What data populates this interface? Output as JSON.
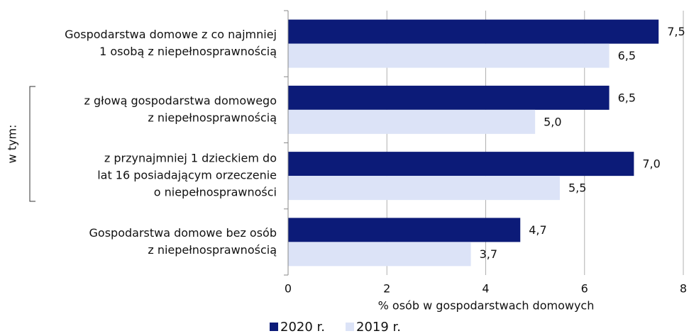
{
  "chart_data": {
    "type": "hbar",
    "categories": [
      [
        "Gospodarstwa domowe z co najmniej",
        "1 osobą z niepełnosprawnością"
      ],
      [
        "z głową gospodarstwa domowego",
        "z niepełnosprawnością"
      ],
      [
        "z przynajmniej 1 dzieckiem do",
        "lat 16 posiadającym orzeczenie",
        "o niepełnosprawności"
      ],
      [
        "Gospodarstwa domowe bez osób",
        "z niepełnosprawnością"
      ]
    ],
    "series": [
      {
        "name": "2020 r.",
        "color": "#0c1b78",
        "values": [
          7.5,
          6.5,
          7.0,
          4.7
        ],
        "value_labels": [
          "7,5",
          "6,5",
          "7,0",
          "4,7"
        ]
      },
      {
        "name": "2019 r.",
        "color": "#dce3f7",
        "values": [
          6.5,
          5.0,
          5.5,
          3.7
        ],
        "value_labels": [
          "6,5",
          "5,0",
          "5,5",
          "3,7"
        ]
      }
    ],
    "xlabel": "% osób w gospodarstwach domowych",
    "annotation": "w tym:",
    "xlim": [
      0,
      8
    ],
    "xticks": [
      0,
      2,
      4,
      6,
      8
    ],
    "grid": true
  }
}
